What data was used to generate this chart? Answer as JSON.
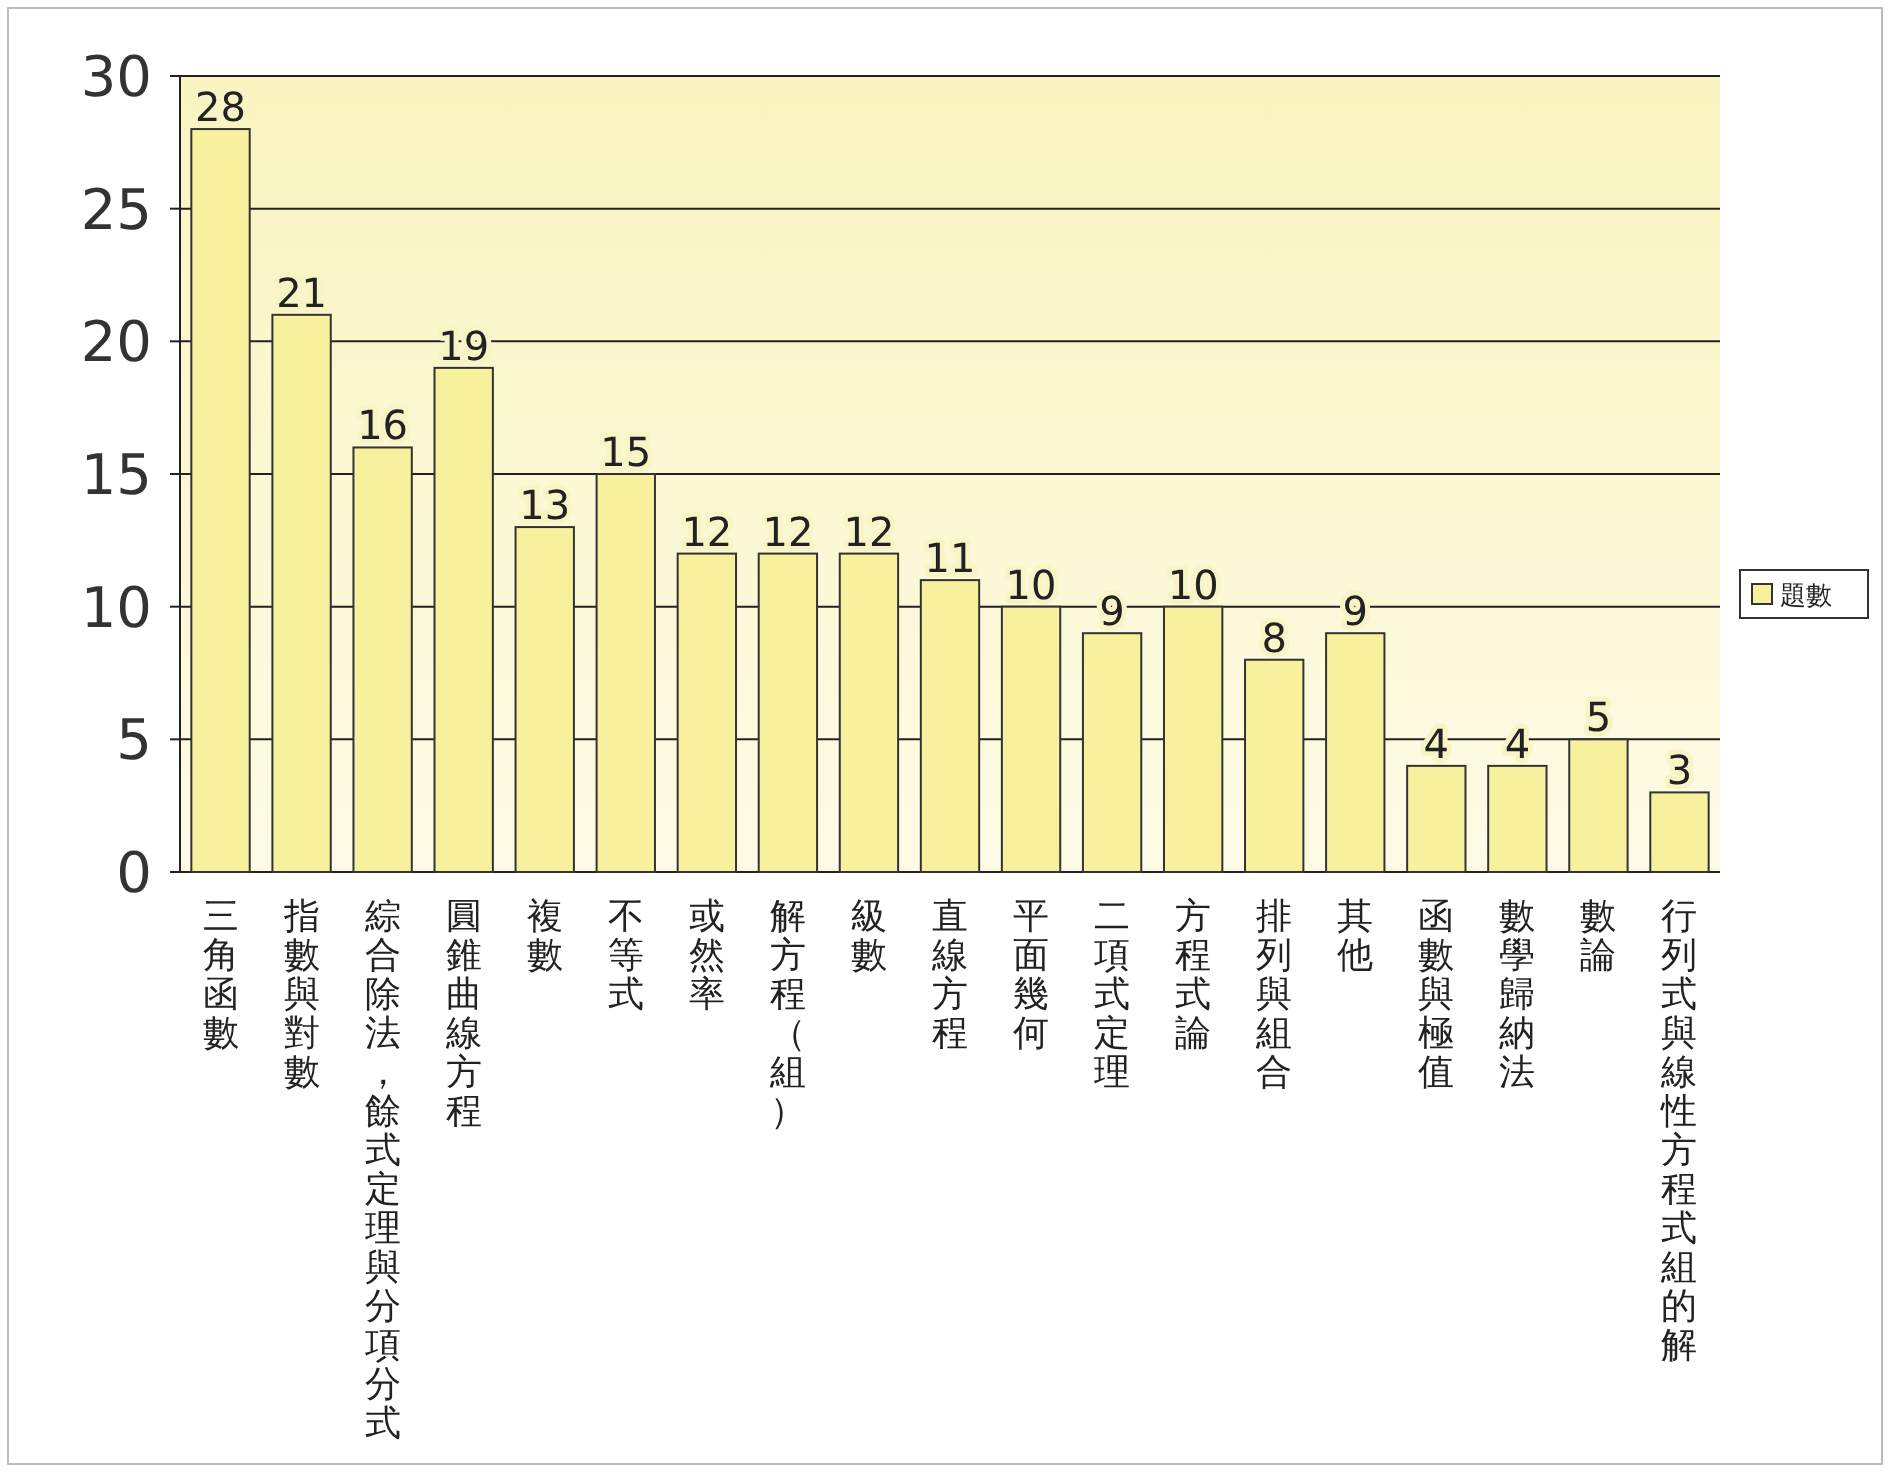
{
  "chart_data": {
    "type": "bar",
    "categories": [
      "三角函數",
      "指數與對數",
      "綜合除法，餘式定理與分項分式",
      "圓錐曲線方程",
      "複數",
      "不等式",
      "或然率",
      "解方程（組）",
      "級數",
      "直線方程",
      "平面幾何",
      "二項式定理",
      "方程式論",
      "排列與組合",
      "其他",
      "函數與極值",
      "數學歸納法",
      "數論",
      "行列式與線性方程式組的解"
    ],
    "series": [
      {
        "name": "題數",
        "color": "#f7f19e",
        "values": [
          28,
          21,
          16,
          19,
          13,
          15,
          12,
          12,
          12,
          11,
          10,
          9,
          10,
          8,
          9,
          4,
          4,
          5,
          3
        ]
      }
    ],
    "ylim": [
      0,
      30
    ],
    "yticks": [
      0,
      5,
      10,
      15,
      20,
      25,
      30
    ],
    "grid": "y",
    "legend": "right",
    "data_labels": true
  }
}
